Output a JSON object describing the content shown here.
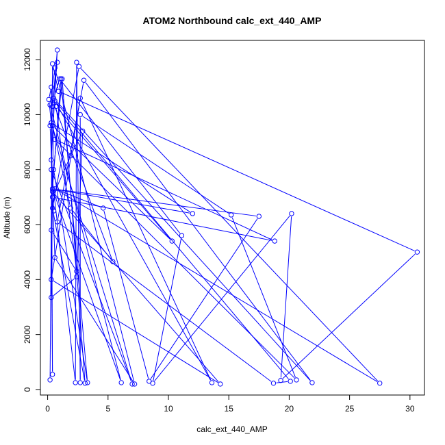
{
  "chart_data": {
    "type": "line",
    "title": "ATOM2 Northbound calc_ext_440_AMP",
    "xlabel": "calc_ext_440_AMP",
    "ylabel": "Altitude (m)",
    "xlim": [
      -0.6,
      31.2
    ],
    "ylim": [
      -200,
      12700
    ],
    "xticks": [
      0,
      5,
      10,
      15,
      20,
      25,
      30
    ],
    "yticks": [
      0,
      2000,
      4000,
      6000,
      8000,
      10000,
      12000
    ],
    "grid": false,
    "legend": "none",
    "style": "both",
    "series": [
      {
        "color": "#0000ff",
        "points": [
          [
            0.2,
            350
          ],
          [
            0.4,
            11850
          ],
          [
            0.9,
            10850
          ],
          [
            30.6,
            5000
          ],
          [
            19.3,
            330
          ],
          [
            20.2,
            6400
          ],
          [
            8.7,
            230
          ],
          [
            11.1,
            5600
          ],
          [
            1.0,
            11300
          ],
          [
            0.5,
            10600
          ],
          [
            21.9,
            250
          ],
          [
            3.0,
            11250
          ],
          [
            0.8,
            6100
          ],
          [
            18.7,
            230
          ],
          [
            20.1,
            300
          ],
          [
            0.6,
            10500
          ],
          [
            13.6,
            250
          ],
          [
            2.7,
            10600
          ],
          [
            0.3,
            4000
          ],
          [
            14.3,
            200
          ],
          [
            0.4,
            7200
          ],
          [
            0.6,
            4800
          ],
          [
            7.2,
            200
          ],
          [
            0.6,
            11700
          ],
          [
            0.2,
            10350
          ],
          [
            6.1,
            250
          ],
          [
            0.4,
            7300
          ],
          [
            1.1,
            11300
          ],
          [
            3.3,
            250
          ],
          [
            0.5,
            8000
          ],
          [
            1.2,
            11300
          ],
          [
            3.1,
            230
          ],
          [
            0.4,
            6600
          ],
          [
            2.6,
            11750
          ],
          [
            27.5,
            230
          ],
          [
            0.6,
            7300
          ],
          [
            4.6,
            6600
          ],
          [
            8.4,
            300
          ],
          [
            17.5,
            6300
          ],
          [
            0.4,
            7300
          ],
          [
            12.0,
            6400
          ],
          [
            0.3,
            9700
          ],
          [
            7.0,
            200
          ],
          [
            0.3,
            8000
          ],
          [
            2.3,
            250
          ],
          [
            2.4,
            11900
          ],
          [
            2.7,
            250
          ],
          [
            2.7,
            10000
          ],
          [
            15.2,
            6350
          ],
          [
            20.6,
            350
          ],
          [
            0.6,
            9100
          ],
          [
            18.8,
            5400
          ],
          [
            0.4,
            7000
          ],
          [
            0.3,
            3350
          ],
          [
            2.4,
            4100
          ],
          [
            2.9,
            9400
          ],
          [
            1.9,
            8500
          ],
          [
            0.4,
            7000
          ],
          [
            0.5,
            10400
          ],
          [
            5.4,
            4650
          ],
          [
            1.9,
            6600
          ],
          [
            0.4,
            9600
          ],
          [
            10.3,
            5400
          ],
          [
            0.7,
            10300
          ],
          [
            2.4,
            4300
          ],
          [
            0.3,
            5800
          ],
          [
            0.4,
            550
          ],
          [
            0.3,
            11000
          ],
          [
            0.1,
            10550
          ],
          [
            0.3,
            9700
          ],
          [
            0.2,
            9600
          ],
          [
            0.5,
            6500
          ],
          [
            0.3,
            8350
          ],
          [
            0.8,
            12350
          ],
          [
            0.4,
            10300
          ],
          [
            0.8,
            11900
          ]
        ]
      }
    ]
  }
}
